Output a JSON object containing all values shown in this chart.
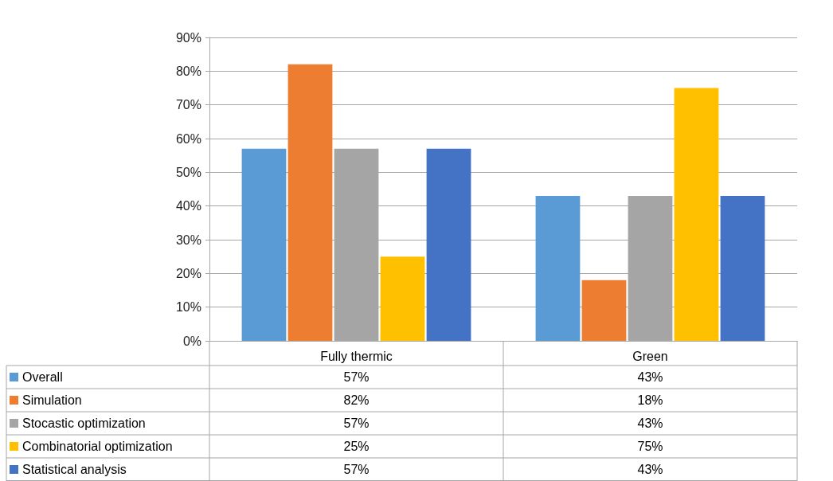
{
  "chart_data": {
    "type": "bar",
    "categories": [
      "Fully thermic",
      "Green"
    ],
    "series": [
      {
        "name": "Overall",
        "color": "#5b9bd5",
        "values": [
          57,
          43
        ],
        "value_labels": [
          "57%",
          "43%"
        ]
      },
      {
        "name": "Simulation",
        "color": "#ed7d31",
        "values": [
          82,
          18
        ],
        "value_labels": [
          "82%",
          "18%"
        ]
      },
      {
        "name": "Stocastic optimization",
        "color": "#a5a5a5",
        "values": [
          57,
          43
        ],
        "value_labels": [
          "57%",
          "43%"
        ]
      },
      {
        "name": "Combinatorial optimization",
        "color": "#ffc000",
        "values": [
          25,
          75
        ],
        "value_labels": [
          "25%",
          "75%"
        ]
      },
      {
        "name": "Statistical analysis",
        "color": "#4472c4",
        "values": [
          57,
          43
        ],
        "value_labels": [
          "57%",
          "43%"
        ]
      }
    ],
    "ylim": [
      0,
      90
    ],
    "yticks": [
      {
        "value": 0,
        "label": "0%"
      },
      {
        "value": 10,
        "label": "10%"
      },
      {
        "value": 20,
        "label": "20%"
      },
      {
        "value": 30,
        "label": "30%"
      },
      {
        "value": 40,
        "label": "40%"
      },
      {
        "value": 50,
        "label": "50%"
      },
      {
        "value": 60,
        "label": "60%"
      },
      {
        "value": 70,
        "label": "70%"
      },
      {
        "value": 80,
        "label": "80%"
      },
      {
        "value": 90,
        "label": "90%"
      }
    ],
    "grid": "y",
    "legend": "bottom left"
  }
}
